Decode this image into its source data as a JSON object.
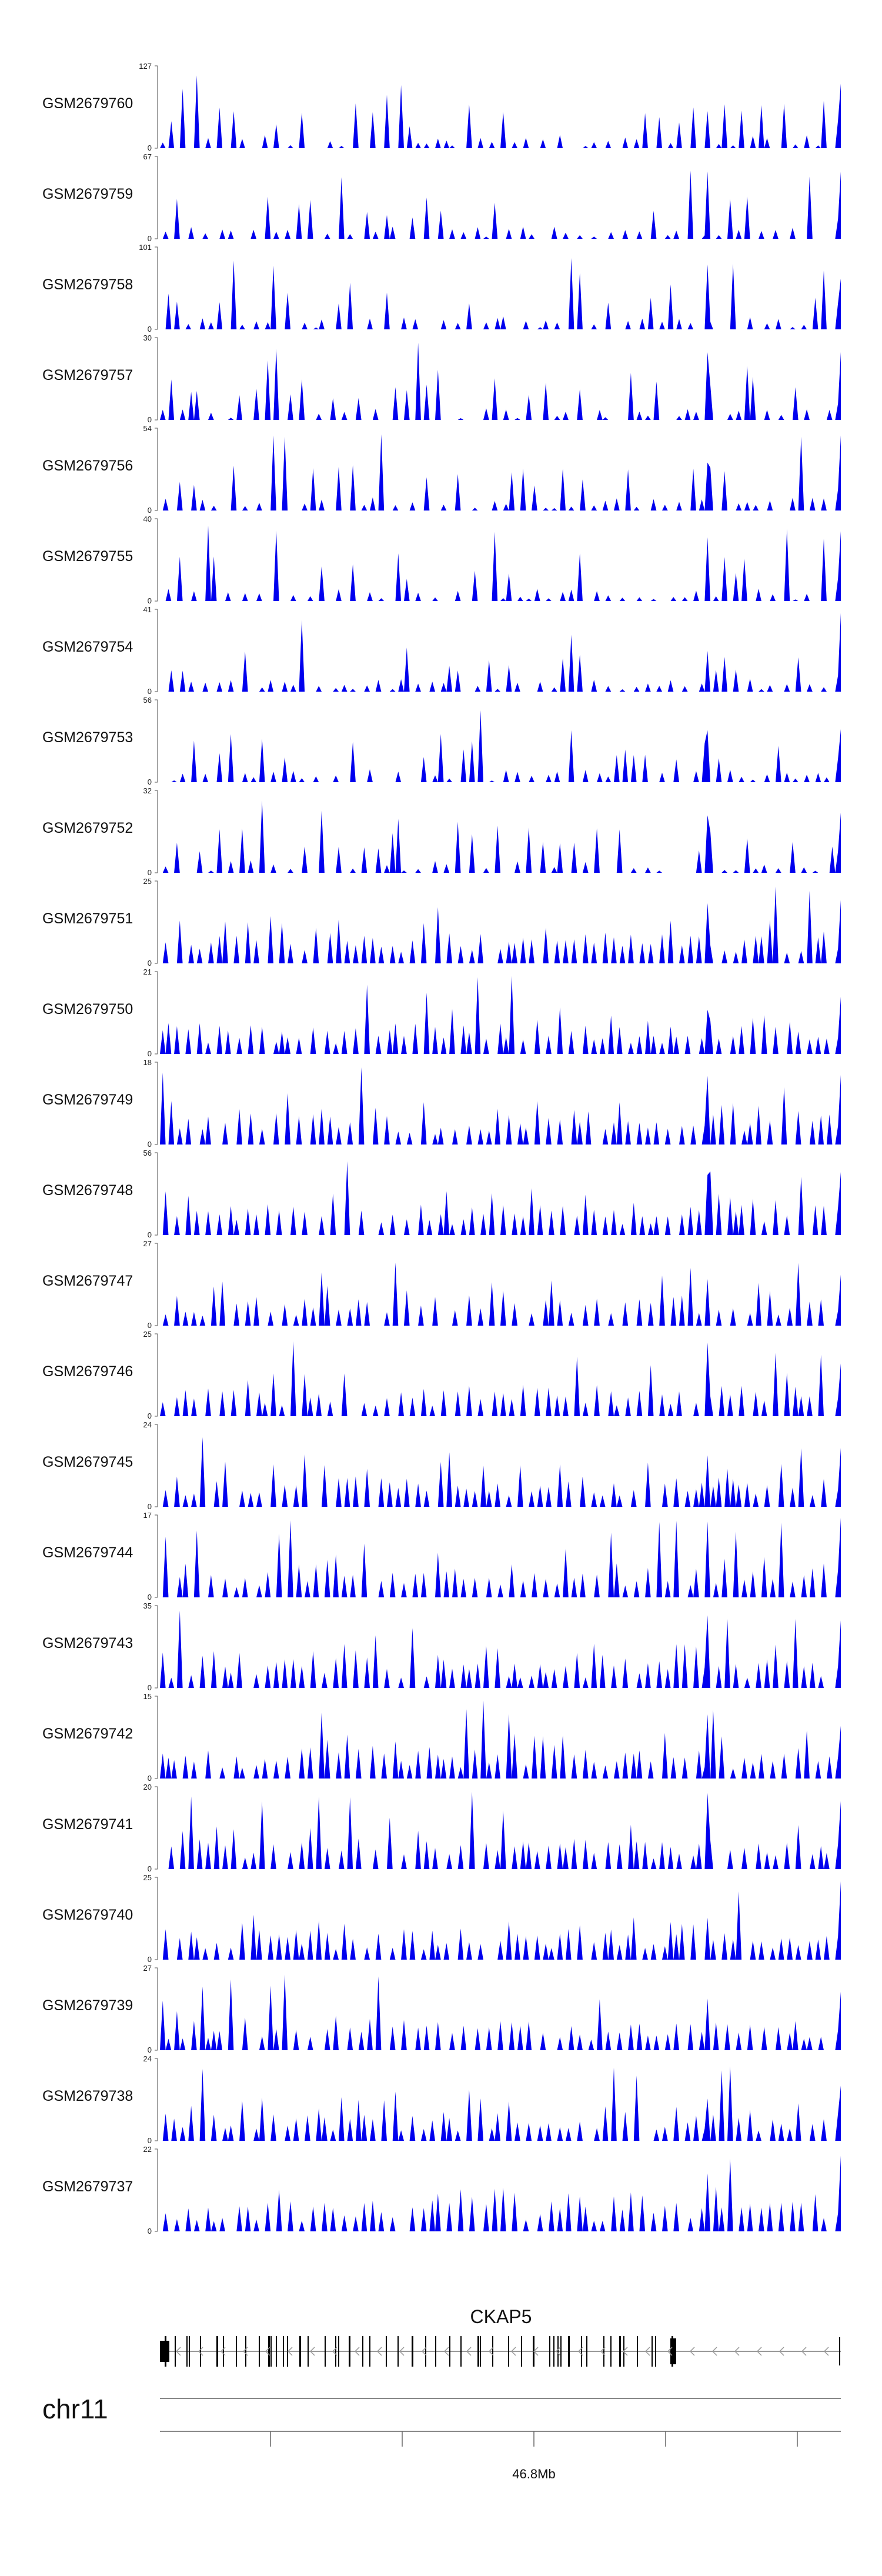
{
  "chart_data": {
    "type": "area",
    "title": "",
    "colors": {
      "fill": "#0000ee",
      "axis": "#888888",
      "text": "#111111"
    },
    "x_range": [
      1,
      200
    ],
    "tracks": [
      {
        "name": "GSM2679760",
        "ymax": 127,
        "ymin": 0
      },
      {
        "name": "GSM2679759",
        "ymax": 67,
        "ymin": 0
      },
      {
        "name": "GSM2679758",
        "ymax": 101,
        "ymin": 0
      },
      {
        "name": "GSM2679757",
        "ymax": 30,
        "ymin": 0
      },
      {
        "name": "GSM2679756",
        "ymax": 54,
        "ymin": 0
      },
      {
        "name": "GSM2679755",
        "ymax": 40,
        "ymin": 0
      },
      {
        "name": "GSM2679754",
        "ymax": 41,
        "ymin": 0
      },
      {
        "name": "GSM2679753",
        "ymax": 56,
        "ymin": 0
      },
      {
        "name": "GSM2679752",
        "ymax": 32,
        "ymin": 0
      },
      {
        "name": "GSM2679751",
        "ymax": 25,
        "ymin": 0
      },
      {
        "name": "GSM2679750",
        "ymax": 21,
        "ymin": 0
      },
      {
        "name": "GSM2679749",
        "ymax": 18,
        "ymin": 0
      },
      {
        "name": "GSM2679748",
        "ymax": 56,
        "ymin": 0
      },
      {
        "name": "GSM2679747",
        "ymax": 27,
        "ymin": 0
      },
      {
        "name": "GSM2679746",
        "ymax": 25,
        "ymin": 0
      },
      {
        "name": "GSM2679745",
        "ymax": 24,
        "ymin": 0
      },
      {
        "name": "GSM2679744",
        "ymax": 17,
        "ymin": 0
      },
      {
        "name": "GSM2679743",
        "ymax": 35,
        "ymin": 0
      },
      {
        "name": "GSM2679742",
        "ymax": 15,
        "ymin": 0
      },
      {
        "name": "GSM2679741",
        "ymax": 20,
        "ymin": 0
      },
      {
        "name": "GSM2679740",
        "ymax": 25,
        "ymin": 0
      },
      {
        "name": "GSM2679739",
        "ymax": 27,
        "ymin": 0
      },
      {
        "name": "GSM2679738",
        "ymax": 24,
        "ymin": 0
      },
      {
        "name": "GSM2679737",
        "ymax": 22,
        "ymin": 0
      }
    ],
    "gene": {
      "name": "CKAP5",
      "strand": "-"
    },
    "chromosome": {
      "name": "chr11",
      "tick_labels": [
        "46.8Mb"
      ]
    }
  }
}
